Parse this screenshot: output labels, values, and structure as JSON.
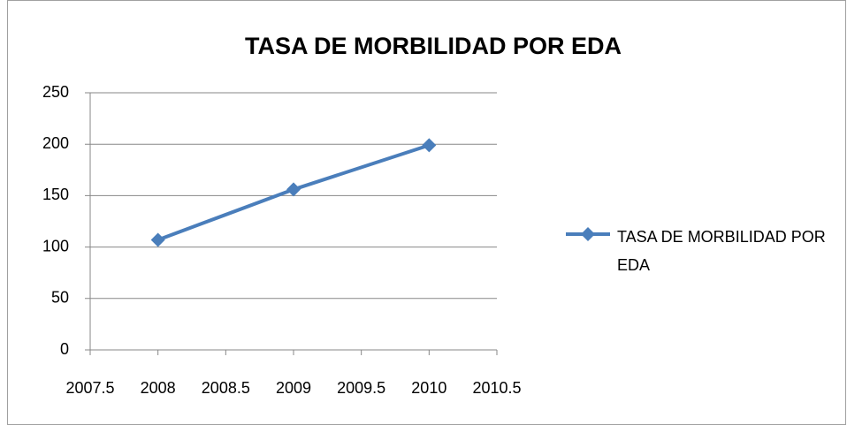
{
  "chart_data": {
    "type": "line",
    "title": "TASA DE MORBILIDAD POR EDA",
    "x": [
      2008,
      2009,
      2010
    ],
    "series": [
      {
        "name": "TASA DE MORBILIDAD POR EDA",
        "color": "#4a7ebb",
        "values": [
          107,
          156,
          199
        ]
      }
    ],
    "xlim": [
      2007.5,
      2010.5
    ],
    "xticks": [
      2007.5,
      2008,
      2008.5,
      2009,
      2009.5,
      2010,
      2010.5
    ],
    "ylim": [
      0,
      250
    ],
    "yticks": [
      0,
      50,
      100,
      150,
      200,
      250
    ],
    "grid": true,
    "legend": "right"
  }
}
